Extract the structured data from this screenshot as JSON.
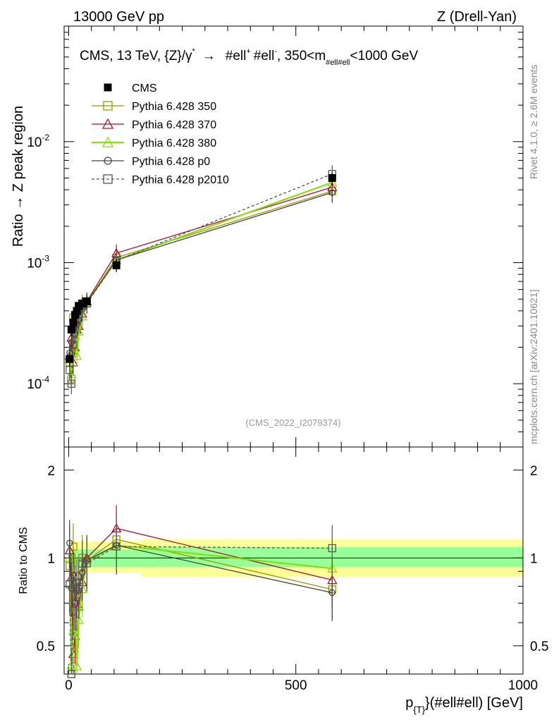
{
  "header": {
    "left": "13000 GeV pp",
    "right": "Z (Drell-Yan)"
  },
  "side_text": {
    "rivet": "Rivet 4.1.0, ≥ 2.6M events",
    "mcplots": "mcplots.cern.ch [arXiv:2401.10621]"
  },
  "chart_data": {
    "type": "line",
    "title_parts": {
      "main": "CMS, 13 TeV, {Z}/γ",
      "star": "*",
      "arrow": "→",
      "ell1": "#ell",
      "plus": "+",
      "ell2": "#ell",
      "minus": "-",
      "range_lo": ", 350<m",
      "sub": "#ell#ell",
      "range_hi": "<1000 GeV"
    },
    "analysis_id": "(CMS_2022_I2079374)",
    "xlabel_main": "p",
    "xlabel_sub": "{T}",
    "xlabel_rest": "}(#ell#ell) [GeV]",
    "ylabel": "Ratio → Z peak region",
    "ratio_ylabel": "Ratio to CMS",
    "xlim": [
      -10,
      1000
    ],
    "ylim": [
      3e-05,
      0.09
    ],
    "ratio_ylim": [
      0.4,
      2.4
    ],
    "x_ticks": [
      "0",
      "500",
      "1000"
    ],
    "y_ticks": [
      {
        "mant": "10",
        "exp": "-4"
      },
      {
        "mant": "10",
        "exp": "-3"
      },
      {
        "mant": "10",
        "exp": "-2"
      }
    ],
    "ratio_ticks": [
      "0.5",
      "1",
      "2"
    ],
    "legend_position": "top-left",
    "x": [
      2,
      6,
      10,
      14,
      18,
      22,
      30,
      40,
      105,
      580
    ],
    "cms": {
      "name": "CMS",
      "values": [
        0.00016,
        0.00028,
        0.00032,
        0.00037,
        0.0004,
        0.00044,
        0.00046,
        0.00048,
        0.00095,
        0.005
      ]
    },
    "band_green": [
      {
        "x0": 0,
        "x1": 160,
        "lo": 0.93,
        "hi": 1.07
      },
      {
        "x0": 160,
        "x1": 1000,
        "lo": 0.93,
        "hi": 1.09
      }
    ],
    "band_yellow": [
      {
        "x0": 0,
        "x1": 160,
        "lo": 0.89,
        "hi": 1.14
      },
      {
        "x0": 160,
        "x1": 1000,
        "lo": 0.86,
        "hi": 1.16
      }
    ],
    "series": [
      {
        "name": "Pythia 6.428 350",
        "color": "#999900",
        "marker": "square",
        "dash": "",
        "values": [
          0.00015,
          0.00011,
          0.00035,
          0.00032,
          0.0003,
          0.00033,
          0.00046,
          0.00047,
          0.0011,
          0.0039
        ]
      },
      {
        "name": "Pythia 6.428 370",
        "color": "#aa1133",
        "marker": "triangle",
        "dash": "",
        "values": [
          0.00017,
          0.00024,
          0.00015,
          0.0002,
          0.00028,
          0.0003,
          0.00038,
          0.00048,
          0.0012,
          0.0042
        ]
      },
      {
        "name": "Pythia 6.428 380",
        "color": "#88dd11",
        "marker": "triangle",
        "dash": "",
        "values": [
          0.00016,
          0.00012,
          0.00018,
          0.00025,
          0.00017,
          0.00027,
          0.00036,
          0.00047,
          0.00105,
          0.0046
        ]
      },
      {
        "name": "Pythia 6.428 p0",
        "color": "#444444",
        "marker": "circle",
        "dash": "",
        "values": [
          0.00018,
          0.00022,
          0.00028,
          0.00026,
          0.00031,
          0.00034,
          0.00041,
          0.00047,
          0.00105,
          0.0038
        ]
      },
      {
        "name": "Pythia 6.428 p2010",
        "color": "#555555",
        "marker": "square",
        "dash": "4,3",
        "values": [
          0.00013,
          0.0001,
          0.00021,
          0.00029,
          0.00033,
          0.00035,
          0.00044,
          0.00046,
          0.00104,
          0.0054
        ]
      }
    ]
  }
}
